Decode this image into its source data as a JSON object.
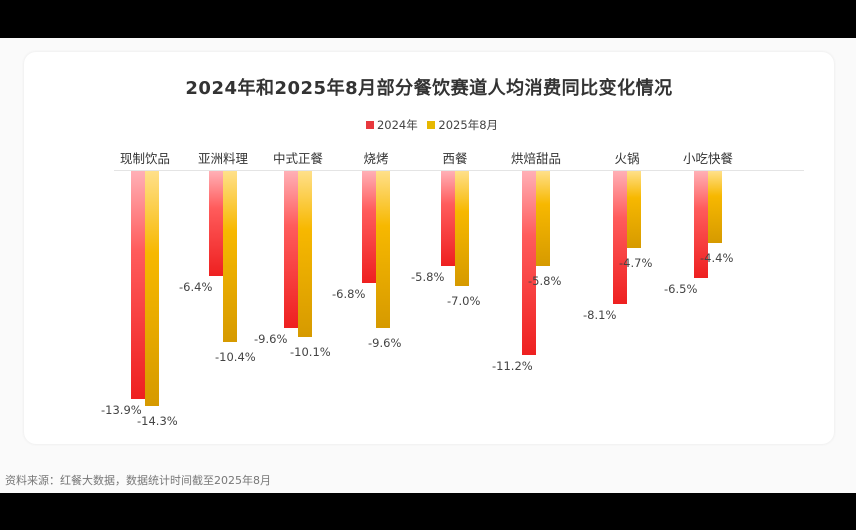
{
  "title": "2024年和2025年8月部分餐饮赛道人均消费同比变化情况",
  "legend": [
    {
      "label": "2024年",
      "color": "#e8383d"
    },
    {
      "label": "2025年8月",
      "color": "#e6b800"
    }
  ],
  "source": "资料来源：红餐大数据，数据统计时间截至2025年8月",
  "chart_data": {
    "type": "bar",
    "title": "2024年和2025年8月部分餐饮赛道人均消费同比变化情况",
    "xlabel": "",
    "ylabel": "",
    "categories": [
      "现制饮品",
      "亚洲料理",
      "中式正餐",
      "烧烤",
      "西餐",
      "烘焙甜品",
      "火锅",
      "小吃快餐"
    ],
    "series": [
      {
        "name": "2024年",
        "values": [
          -13.9,
          -6.4,
          -9.6,
          -6.8,
          -5.8,
          -11.2,
          -8.1,
          -6.5
        ],
        "labels": [
          "-13.9%",
          "-6.4%",
          "-9.6%",
          "-6.8%",
          "-5.8%",
          "-11.2%",
          "-8.1%",
          "-6.5%"
        ]
      },
      {
        "name": "2025年8月",
        "values": [
          -14.3,
          -10.4,
          -10.1,
          -9.6,
          -7.0,
          -5.8,
          -4.7,
          -4.4
        ],
        "labels": [
          "-14.3%",
          "-10.4%",
          "-10.1%",
          "-9.6%",
          "-7.0%",
          "-5.8%",
          "-4.7%",
          "-4.4%"
        ]
      }
    ],
    "ylim": [
      -15,
      0
    ],
    "grid": false,
    "legend_position": "top",
    "category_axis_position": "top"
  }
}
